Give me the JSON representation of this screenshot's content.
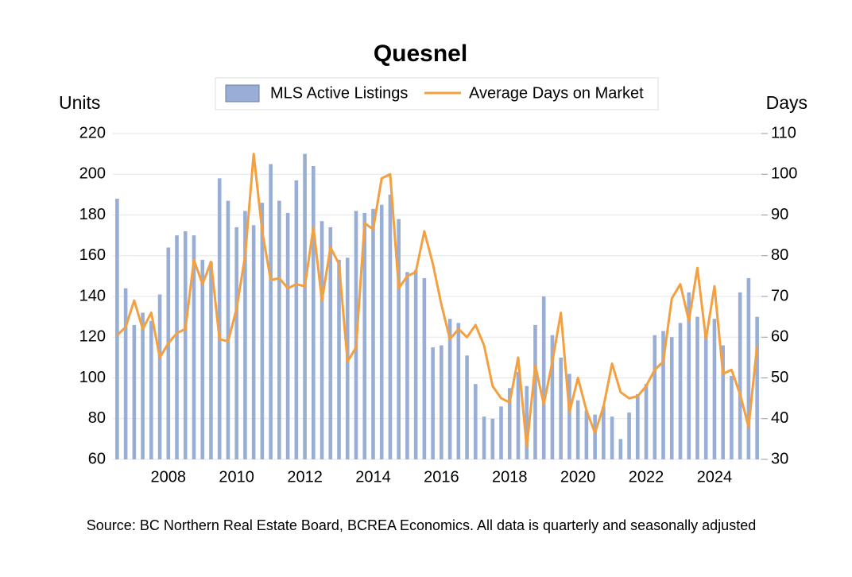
{
  "chart_data": {
    "type": "bar_line",
    "title": "Quesnel",
    "y_label": "Units",
    "y2_label": "Days",
    "source": "Source: BC Northern Real Estate Board, BCREA Economics. All data is quarterly and seasonally adjusted",
    "categories": [
      null,
      null,
      null,
      null,
      null,
      null,
      "2008",
      null,
      null,
      null,
      null,
      null,
      null,
      null,
      "2010",
      null,
      null,
      null,
      null,
      null,
      null,
      null,
      "2012",
      null,
      null,
      null,
      null,
      null,
      null,
      null,
      "2014",
      null,
      null,
      null,
      null,
      null,
      null,
      null,
      "2016",
      null,
      null,
      null,
      null,
      null,
      null,
      null,
      "2018",
      null,
      null,
      null,
      null,
      null,
      null,
      null,
      "2020",
      null,
      null,
      null,
      null,
      null,
      null,
      null,
      "2022",
      null,
      null,
      null,
      null,
      null,
      null,
      null,
      "2024",
      null,
      null,
      null,
      null,
      null
    ],
    "series": [
      {
        "name": "MLS Active Listings",
        "type": "bar",
        "color": "#98aed6",
        "values": [
          188,
          144,
          126,
          132,
          128,
          141,
          164,
          170,
          172,
          170,
          158,
          157,
          198,
          187,
          174,
          182,
          175,
          186,
          205,
          187,
          181,
          197,
          210,
          204,
          177,
          174,
          158,
          159,
          182,
          181,
          183,
          185,
          190,
          178,
          152,
          153,
          149,
          115,
          116,
          129,
          127,
          111,
          97,
          81,
          80,
          86,
          95,
          103,
          96,
          126,
          140,
          121,
          110,
          102,
          89,
          84,
          82,
          86,
          81,
          70,
          83,
          92,
          97,
          121,
          123,
          120,
          127,
          142,
          130,
          122,
          129,
          116,
          101,
          142,
          149,
          130
        ]
      },
      {
        "name": "Average Days on Market",
        "type": "line",
        "color": "#f4a040",
        "axis": "y2",
        "values": [
          60.5,
          62.5,
          69,
          62,
          66,
          55,
          58.5,
          61,
          62,
          79,
          73,
          78.5,
          59.5,
          59,
          67,
          80,
          105,
          86,
          74,
          74.5,
          72,
          73,
          72.5,
          87,
          69,
          82,
          78,
          54,
          57.5,
          88,
          86.5,
          99,
          100,
          72,
          75,
          76,
          86,
          78,
          68,
          59.5,
          62,
          60,
          63,
          58,
          48,
          45,
          44,
          55,
          33,
          53,
          43.5,
          54,
          66,
          41.5,
          50,
          42,
          36.5,
          43,
          53.5,
          46.5,
          45,
          45.5,
          48,
          52,
          54,
          69.5,
          73,
          64,
          77,
          59.5,
          72.5,
          51,
          52,
          46,
          38,
          58
        ]
      }
    ],
    "ylim": [
      60,
      220
    ],
    "yticks": [
      60,
      80,
      100,
      120,
      140,
      160,
      180,
      200,
      220
    ],
    "y2lim": [
      30,
      110
    ],
    "y2ticks": [
      30,
      40,
      50,
      60,
      70,
      80,
      90,
      100,
      110
    ],
    "grid": true,
    "legend": "top"
  }
}
